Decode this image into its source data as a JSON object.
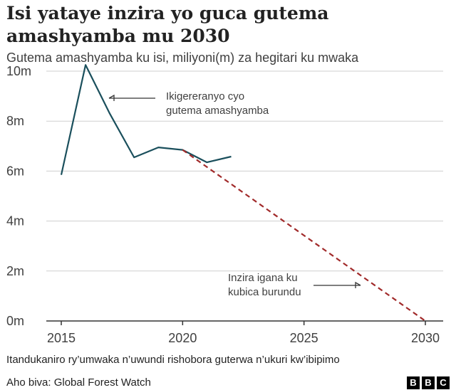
{
  "title": "Isi yataye inzira yo guca gutema amashyamba mu 2030",
  "subtitle": "Gutema amashyamba ku isi, miliyoni(m) za hegitari ku mwaka",
  "note": "Itandukaniro ry’umwaka n’uwundi rishobora guterwa n’ukuri kw’ibipimo",
  "source": "Aho biva: Global Forest Watch",
  "logo": [
    "B",
    "B",
    "C"
  ],
  "colors": {
    "actual_line": "#1a4f5c",
    "target_line": "#a12a2a",
    "grid": "#cfcfcf",
    "axis": "#333333"
  },
  "chart_data": {
    "type": "line",
    "ylim": [
      0,
      10
    ],
    "xlim": [
      2015,
      2030
    ],
    "y_ticks": [
      0,
      2,
      4,
      6,
      8,
      10
    ],
    "y_tick_labels": [
      "0m",
      "2m",
      "4m",
      "6m",
      "8m",
      "10m"
    ],
    "x_ticks": [
      2015,
      2020,
      2025,
      2030
    ],
    "x_tick_labels": [
      "2015",
      "2020",
      "2025",
      "2030"
    ],
    "grid": true,
    "series": [
      {
        "style": "solid",
        "color": "#1a4f5c",
        "x": [
          2015,
          2016,
          2017,
          2018,
          2019,
          2020,
          2021,
          2022
        ],
        "y": [
          5.85,
          10.25,
          8.3,
          6.55,
          6.95,
          6.85,
          6.35,
          6.58
        ]
      },
      {
        "style": "dashed",
        "color": "#a12a2a",
        "x": [
          2020,
          2030
        ],
        "y": [
          6.85,
          0
        ]
      }
    ],
    "annotations": [
      {
        "lines": [
          "Ikigereranyo cyo",
          "gutema amashyamba"
        ],
        "arrow": "left"
      },
      {
        "lines": [
          "Inzira igana ku",
          "kubica burundu"
        ],
        "arrow": "right"
      }
    ]
  }
}
